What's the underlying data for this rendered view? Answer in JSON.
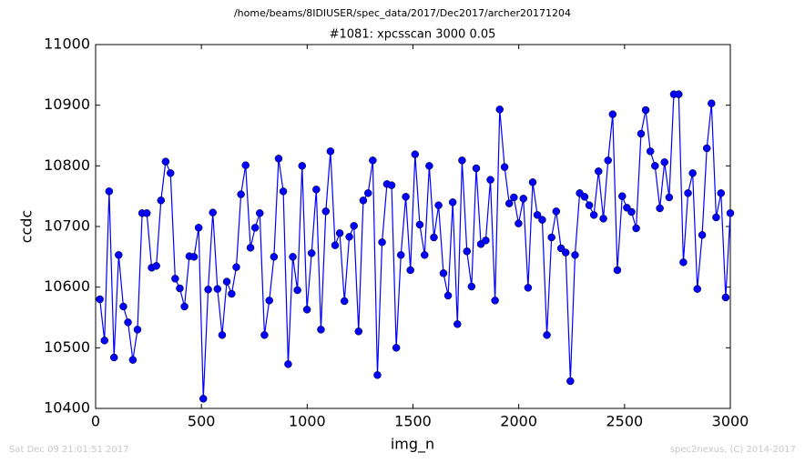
{
  "chart_data": {
    "type": "line",
    "suptitle": "/home/beams/8IDIUSER/spec_data/2017/Dec2017/archer20171204",
    "title": "#1081: xpcsscan 3000 0.05",
    "x_label": "img_n",
    "y_label": "ccdc",
    "footer_left": "Sat Dec 09 21:01:51 2017",
    "footer_right": "spec2nexus, (C) 2014-2017",
    "color": "#0000ff",
    "x": [
      20,
      42,
      64,
      87,
      109,
      131,
      153,
      176,
      198,
      220,
      242,
      265,
      287,
      309,
      331,
      354,
      376,
      398,
      420,
      443,
      465,
      487,
      509,
      532,
      554,
      576,
      598,
      620,
      643,
      665,
      687,
      709,
      732,
      754,
      776,
      798,
      821,
      843,
      865,
      887,
      910,
      932,
      954,
      976,
      999,
      1021,
      1043,
      1065,
      1088,
      1110,
      1132,
      1154,
      1176,
      1199,
      1221,
      1243,
      1265,
      1288,
      1310,
      1332,
      1354,
      1377,
      1399,
      1421,
      1443,
      1466,
      1488,
      1510,
      1532,
      1555,
      1577,
      1599,
      1621,
      1644,
      1666,
      1688,
      1710,
      1732,
      1755,
      1777,
      1799,
      1821,
      1844,
      1866,
      1888,
      1910,
      1933,
      1955,
      1977,
      1999,
      2022,
      2044,
      2066,
      2088,
      2111,
      2133,
      2155,
      2177,
      2200,
      2222,
      2244,
      2266,
      2288,
      2311,
      2333,
      2355,
      2377,
      2400,
      2422,
      2444,
      2466,
      2489,
      2511,
      2533,
      2555,
      2578,
      2600,
      2622,
      2644,
      2667,
      2689,
      2711,
      2733,
      2756,
      2778,
      2800,
      2822,
      2844,
      2867,
      2889,
      2911,
      2933,
      2956,
      2978,
      3000
    ],
    "values": [
      10580,
      10512,
      10758,
      10484,
      10653,
      10568,
      10542,
      10480,
      10530,
      10722,
      10722,
      10632,
      10635,
      10743,
      10807,
      10788,
      10614,
      10598,
      10568,
      10651,
      10650,
      10698,
      10416,
      10596,
      10723,
      10597,
      10521,
      10609,
      10589,
      10633,
      10753,
      10801,
      10665,
      10698,
      10722,
      10521,
      10578,
      10650,
      10812,
      10758,
      10473,
      10650,
      10595,
      10800,
      10563,
      10656,
      10761,
      10530,
      10725,
      10824,
      10669,
      10689,
      10577,
      10683,
      10701,
      10527,
      10743,
      10755,
      10809,
      10455,
      10674,
      10770,
      10768,
      10500,
      10653,
      10749,
      10628,
      10819,
      10703,
      10653,
      10800,
      10682,
      10735,
      10623,
      10586,
      10740,
      10539,
      10809,
      10659,
      10601,
      10796,
      10671,
      10677,
      10777,
      10578,
      10893,
      10798,
      10738,
      10748,
      10705,
      10746,
      10599,
      10773,
      10719,
      10711,
      10521,
      10682,
      10725,
      10664,
      10657,
      10445,
      10653,
      10755,
      10749,
      10735,
      10719,
      10791,
      10713,
      10809,
      10885,
      10628,
      10750,
      10731,
      10724,
      10697,
      10853,
      10892,
      10824,
      10800,
      10730,
      10806,
      10748,
      10918,
      10918,
      10641,
      10755,
      10788,
      10597,
      10686,
      10829,
      10903,
      10715,
      10755,
      10583,
      10722
    ],
    "xlim": [
      0,
      3000
    ],
    "ylim": [
      10400,
      11000
    ],
    "xticks": [
      0,
      500,
      1000,
      1500,
      2000,
      2500,
      3000
    ],
    "yticks": [
      10400,
      10500,
      10600,
      10700,
      10800,
      10900,
      11000
    ],
    "grid": false
  }
}
